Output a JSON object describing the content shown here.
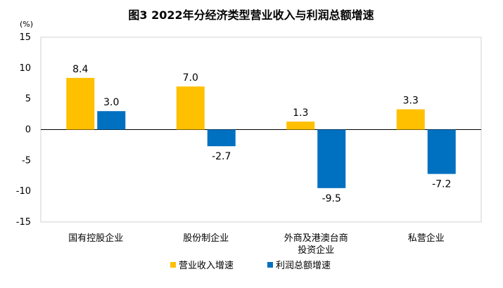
{
  "chart_data": {
    "type": "bar",
    "title": "图3  2022年分经济类型营业收入与利润总额增速",
    "unit_label": "(%)",
    "categories": [
      [
        "国有控股企业"
      ],
      [
        "股份制企业"
      ],
      [
        "外商及港澳台商",
        "投资企业"
      ],
      [
        "私营企业"
      ]
    ],
    "series": [
      {
        "name": "营业收入增速",
        "color": "#FFC000",
        "values": [
          8.4,
          7.0,
          1.3,
          3.3
        ]
      },
      {
        "name": "利润总额增速",
        "color": "#0070C0",
        "values": [
          3.0,
          -2.7,
          -9.5,
          -7.2
        ]
      }
    ],
    "ylim": [
      -15,
      15
    ],
    "yticks": [
      15,
      10,
      5,
      0,
      -5,
      -10,
      -15
    ],
    "grid": false,
    "legend_position": "bottom"
  }
}
